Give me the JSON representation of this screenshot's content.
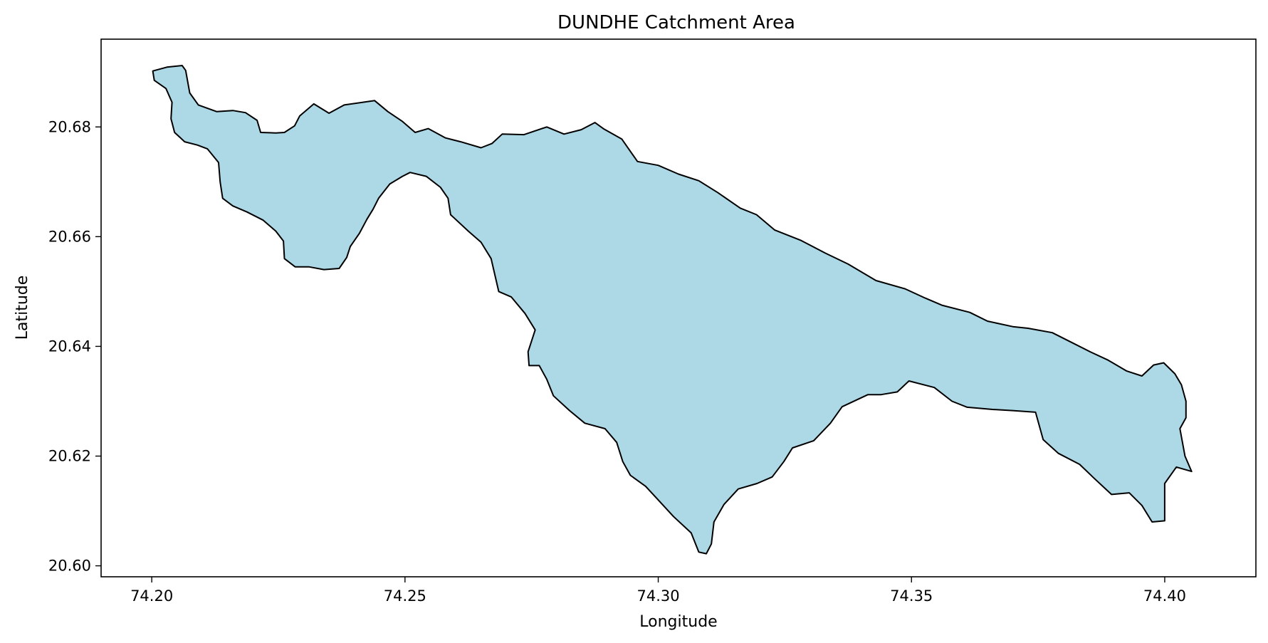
{
  "map": {
    "title": "DUNDHE Catchment Area",
    "xlabel": "Longitude",
    "ylabel": "Latitude",
    "fill_color": "#add8e6",
    "edge_color": "#000000"
  },
  "chart_data": {
    "type": "map",
    "title": "DUNDHE Catchment Area",
    "xlabel": "Longitude",
    "ylabel": "Latitude",
    "xlim": [
      74.19,
      74.418
    ],
    "ylim": [
      20.598,
      20.696
    ],
    "x_ticks": [
      74.2,
      74.25,
      74.3,
      74.35,
      74.4
    ],
    "x_tick_labels": [
      "74.20",
      "74.25",
      "74.30",
      "74.35",
      "74.40"
    ],
    "y_ticks": [
      20.6,
      20.62,
      20.64,
      20.66,
      20.68
    ],
    "y_tick_labels": [
      "20.60",
      "20.62",
      "20.64",
      "20.66",
      "20.68"
    ],
    "grid": false,
    "boundary_lonlat": [
      [
        74.2002,
        20.6902
      ],
      [
        74.203,
        20.6909
      ],
      [
        74.206,
        20.6912
      ],
      [
        74.2067,
        20.6903
      ],
      [
        74.2075,
        20.6862
      ],
      [
        74.2092,
        20.684
      ],
      [
        74.2128,
        20.6828
      ],
      [
        74.216,
        20.683
      ],
      [
        74.2185,
        20.6826
      ],
      [
        74.2208,
        20.6812
      ],
      [
        74.2215,
        20.679
      ],
      [
        74.2245,
        20.6789
      ],
      [
        74.2262,
        20.679
      ],
      [
        74.2282,
        20.6802
      ],
      [
        74.2292,
        20.682
      ],
      [
        74.232,
        20.6842
      ],
      [
        74.235,
        20.6825
      ],
      [
        74.238,
        20.684
      ],
      [
        74.244,
        20.6848
      ],
      [
        74.2466,
        20.6828
      ],
      [
        74.2495,
        20.681
      ],
      [
        74.252,
        20.679
      ],
      [
        74.2546,
        20.6797
      ],
      [
        74.258,
        20.678
      ],
      [
        74.261,
        20.6773
      ],
      [
        74.265,
        20.6762
      ],
      [
        74.2672,
        20.677
      ],
      [
        74.2692,
        20.6787
      ],
      [
        74.2735,
        20.6786
      ],
      [
        74.278,
        20.68
      ],
      [
        74.2814,
        20.6787
      ],
      [
        74.2848,
        20.6795
      ],
      [
        74.2875,
        20.6808
      ],
      [
        74.2893,
        20.6796
      ],
      [
        74.2928,
        20.6778
      ],
      [
        74.2959,
        20.6737
      ],
      [
        74.3,
        20.673
      ],
      [
        74.304,
        20.6714
      ],
      [
        74.308,
        20.6702
      ],
      [
        74.3118,
        20.668
      ],
      [
        74.3162,
        20.6652
      ],
      [
        74.3194,
        20.664
      ],
      [
        74.323,
        20.6612
      ],
      [
        74.3282,
        20.6593
      ],
      [
        74.333,
        20.657
      ],
      [
        74.3375,
        20.655
      ],
      [
        74.343,
        20.652
      ],
      [
        74.3487,
        20.6505
      ],
      [
        74.3527,
        20.6488
      ],
      [
        74.356,
        20.6475
      ],
      [
        74.3615,
        20.6462
      ],
      [
        74.365,
        20.6446
      ],
      [
        74.37,
        20.6436
      ],
      [
        74.373,
        20.6433
      ],
      [
        74.3778,
        20.6425
      ],
      [
        74.381,
        20.641
      ],
      [
        74.3853,
        20.639
      ],
      [
        74.3888,
        20.6375
      ],
      [
        74.3925,
        20.6355
      ],
      [
        74.3955,
        20.6346
      ],
      [
        74.3978,
        20.6366
      ],
      [
        74.3998,
        20.637
      ],
      [
        74.402,
        20.635
      ],
      [
        74.4033,
        20.633
      ],
      [
        74.4042,
        20.63
      ],
      [
        74.4042,
        20.627
      ],
      [
        74.403,
        20.625
      ],
      [
        74.404,
        20.62
      ],
      [
        74.4053,
        20.6172
      ],
      [
        74.4023,
        20.618
      ],
      [
        74.4,
        20.615
      ],
      [
        74.4,
        20.6082
      ],
      [
        74.3975,
        20.608
      ],
      [
        74.3955,
        20.611
      ],
      [
        74.393,
        20.6133
      ],
      [
        74.3895,
        20.613
      ],
      [
        74.386,
        20.616
      ],
      [
        74.3832,
        20.6185
      ],
      [
        74.379,
        20.6205
      ],
      [
        74.376,
        20.623
      ],
      [
        74.3745,
        20.628
      ],
      [
        74.37,
        20.6283
      ],
      [
        74.366,
        20.6285
      ],
      [
        74.361,
        20.6289
      ],
      [
        74.358,
        20.63
      ],
      [
        74.3545,
        20.6325
      ],
      [
        74.3495,
        20.6337
      ],
      [
        74.3472,
        20.6317
      ],
      [
        74.344,
        20.6312
      ],
      [
        74.3414,
        20.6312
      ],
      [
        74.3363,
        20.629
      ],
      [
        74.334,
        20.626
      ],
      [
        74.3307,
        20.6228
      ],
      [
        74.3265,
        20.6215
      ],
      [
        74.3248,
        20.619
      ],
      [
        74.3225,
        20.6162
      ],
      [
        74.3195,
        20.615
      ],
      [
        74.3158,
        20.614
      ],
      [
        74.313,
        20.6112
      ],
      [
        74.311,
        20.608
      ],
      [
        74.3105,
        20.604
      ],
      [
        74.3095,
        20.6022
      ],
      [
        74.308,
        20.6025
      ],
      [
        74.3065,
        20.606
      ],
      [
        74.303,
        20.609
      ],
      [
        74.3,
        20.612
      ],
      [
        74.2975,
        20.6145
      ],
      [
        74.2945,
        20.6165
      ],
      [
        74.293,
        20.619
      ],
      [
        74.2918,
        20.6225
      ],
      [
        74.2895,
        20.625
      ],
      [
        74.2855,
        20.626
      ],
      [
        74.2825,
        20.6283
      ],
      [
        74.2793,
        20.631
      ],
      [
        74.278,
        20.634
      ],
      [
        74.2765,
        20.6365
      ],
      [
        74.2745,
        20.6365
      ],
      [
        74.2743,
        20.639
      ],
      [
        74.2757,
        20.643
      ],
      [
        74.2737,
        20.646
      ],
      [
        74.271,
        20.649
      ],
      [
        74.2685,
        20.65
      ],
      [
        74.267,
        20.656
      ],
      [
        74.265,
        20.659
      ],
      [
        74.2625,
        20.661
      ],
      [
        74.259,
        20.664
      ],
      [
        74.2585,
        20.667
      ],
      [
        74.257,
        20.669
      ],
      [
        74.2542,
        20.671
      ],
      [
        74.251,
        20.6717
      ],
      [
        74.2495,
        20.671
      ],
      [
        74.247,
        20.6696
      ],
      [
        74.2448,
        20.667
      ],
      [
        74.2437,
        20.665
      ],
      [
        74.2425,
        20.6632
      ],
      [
        74.241,
        20.6606
      ],
      [
        74.2392,
        20.6582
      ],
      [
        74.2385,
        20.6562
      ],
      [
        74.237,
        20.6542
      ],
      [
        74.234,
        20.654
      ],
      [
        74.231,
        20.6545
      ],
      [
        74.2283,
        20.6545
      ],
      [
        74.2262,
        20.656
      ],
      [
        74.226,
        20.6592
      ],
      [
        74.2245,
        20.661
      ],
      [
        74.222,
        20.663
      ],
      [
        74.2188,
        20.6645
      ],
      [
        74.216,
        20.6656
      ],
      [
        74.214,
        20.667
      ],
      [
        74.2135,
        20.67
      ],
      [
        74.2132,
        20.6735
      ],
      [
        74.211,
        20.676
      ],
      [
        74.209,
        20.6767
      ],
      [
        74.2065,
        20.6773
      ],
      [
        74.2045,
        20.679
      ],
      [
        74.2038,
        20.6815
      ],
      [
        74.204,
        20.6845
      ],
      [
        74.2028,
        20.687
      ],
      [
        74.2005,
        20.6885
      ],
      [
        74.2002,
        20.6902
      ]
    ]
  }
}
